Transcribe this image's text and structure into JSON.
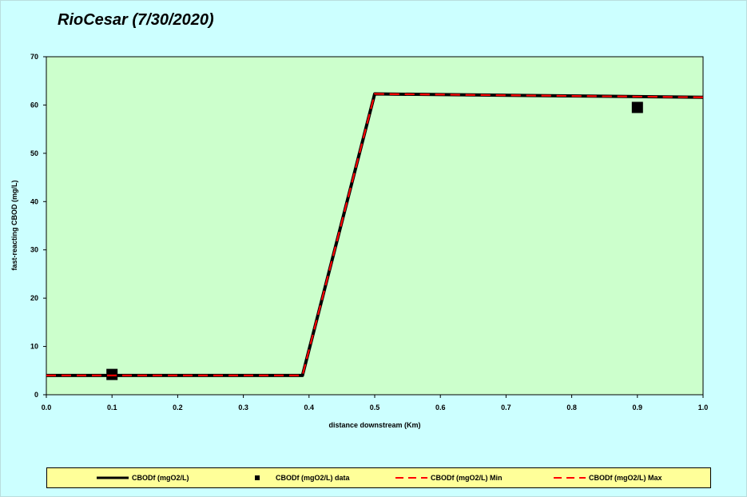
{
  "chart_data": {
    "type": "line",
    "title": "RioCesar (7/30/2020)",
    "xlabel": "distance downstream (Km)",
    "ylabel": "fast-reacting CBOD (mg/L)",
    "xlim": [
      0.0,
      1.0
    ],
    "ylim": [
      0,
      70
    ],
    "x_ticks": [
      "0.0",
      "0.1",
      "0.2",
      "0.3",
      "0.4",
      "0.5",
      "0.6",
      "0.7",
      "0.8",
      "0.9",
      "1.0"
    ],
    "y_ticks": [
      "0",
      "10",
      "20",
      "30",
      "40",
      "50",
      "60",
      "70"
    ],
    "grid": false,
    "legend_position": "bottom",
    "series": [
      {
        "name": "CBODf (mgO2/L)",
        "kind": "line",
        "color": "#000000",
        "x": [
          0.0,
          0.39,
          0.5,
          1.0
        ],
        "y": [
          4.0,
          4.0,
          62.3,
          61.6
        ]
      },
      {
        "name": "CBODf (mgO2/L) data",
        "kind": "marker",
        "color": "#000000",
        "x": [
          0.1,
          0.9
        ],
        "y": [
          4.2,
          59.5
        ]
      },
      {
        "name": "CBODf (mgO2/L) Min",
        "kind": "dashed",
        "color": "#ff0000",
        "x": [
          0.0,
          0.39,
          0.5,
          1.0
        ],
        "y": [
          4.0,
          4.0,
          62.3,
          61.6
        ]
      },
      {
        "name": "CBODf (mgO2/L) Max",
        "kind": "dashed",
        "color": "#ff0000",
        "x": [
          0.0,
          0.39,
          0.5,
          1.0
        ],
        "y": [
          4.0,
          4.0,
          62.3,
          61.6
        ]
      }
    ],
    "plot_background": "#ccffcc",
    "page_background": "#ccffff",
    "legend_background": "#ffff99"
  }
}
